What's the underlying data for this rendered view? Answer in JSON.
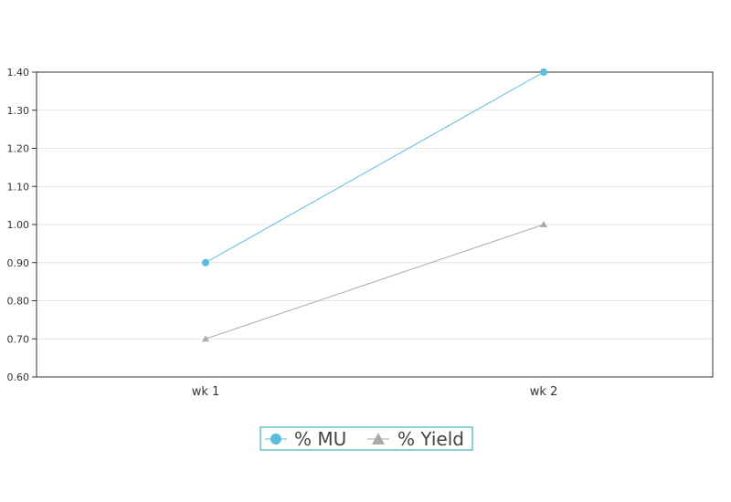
{
  "chart_data": {
    "type": "line",
    "categories": [
      "wk 1",
      "wk 2"
    ],
    "series": [
      {
        "name": "% MU",
        "values": [
          0.9,
          1.4
        ],
        "color": "#5bbcdd",
        "marker": "circle"
      },
      {
        "name": "% Yield",
        "values": [
          0.7,
          1.0
        ],
        "color": "#aaaaaa",
        "marker": "triangle"
      }
    ],
    "ylim": [
      0.6,
      1.4
    ],
    "yticks": [
      "0.60",
      "0.70",
      "0.80",
      "0.90",
      "1.00",
      "1.10",
      "1.20",
      "1.30",
      "1.40"
    ],
    "ytick_values": [
      0.6,
      0.7,
      0.8,
      0.9,
      1.0,
      1.1,
      1.2,
      1.3,
      1.4
    ],
    "grid": true,
    "legend": "bottom-center",
    "legend_border_color": "#20a0a0"
  }
}
